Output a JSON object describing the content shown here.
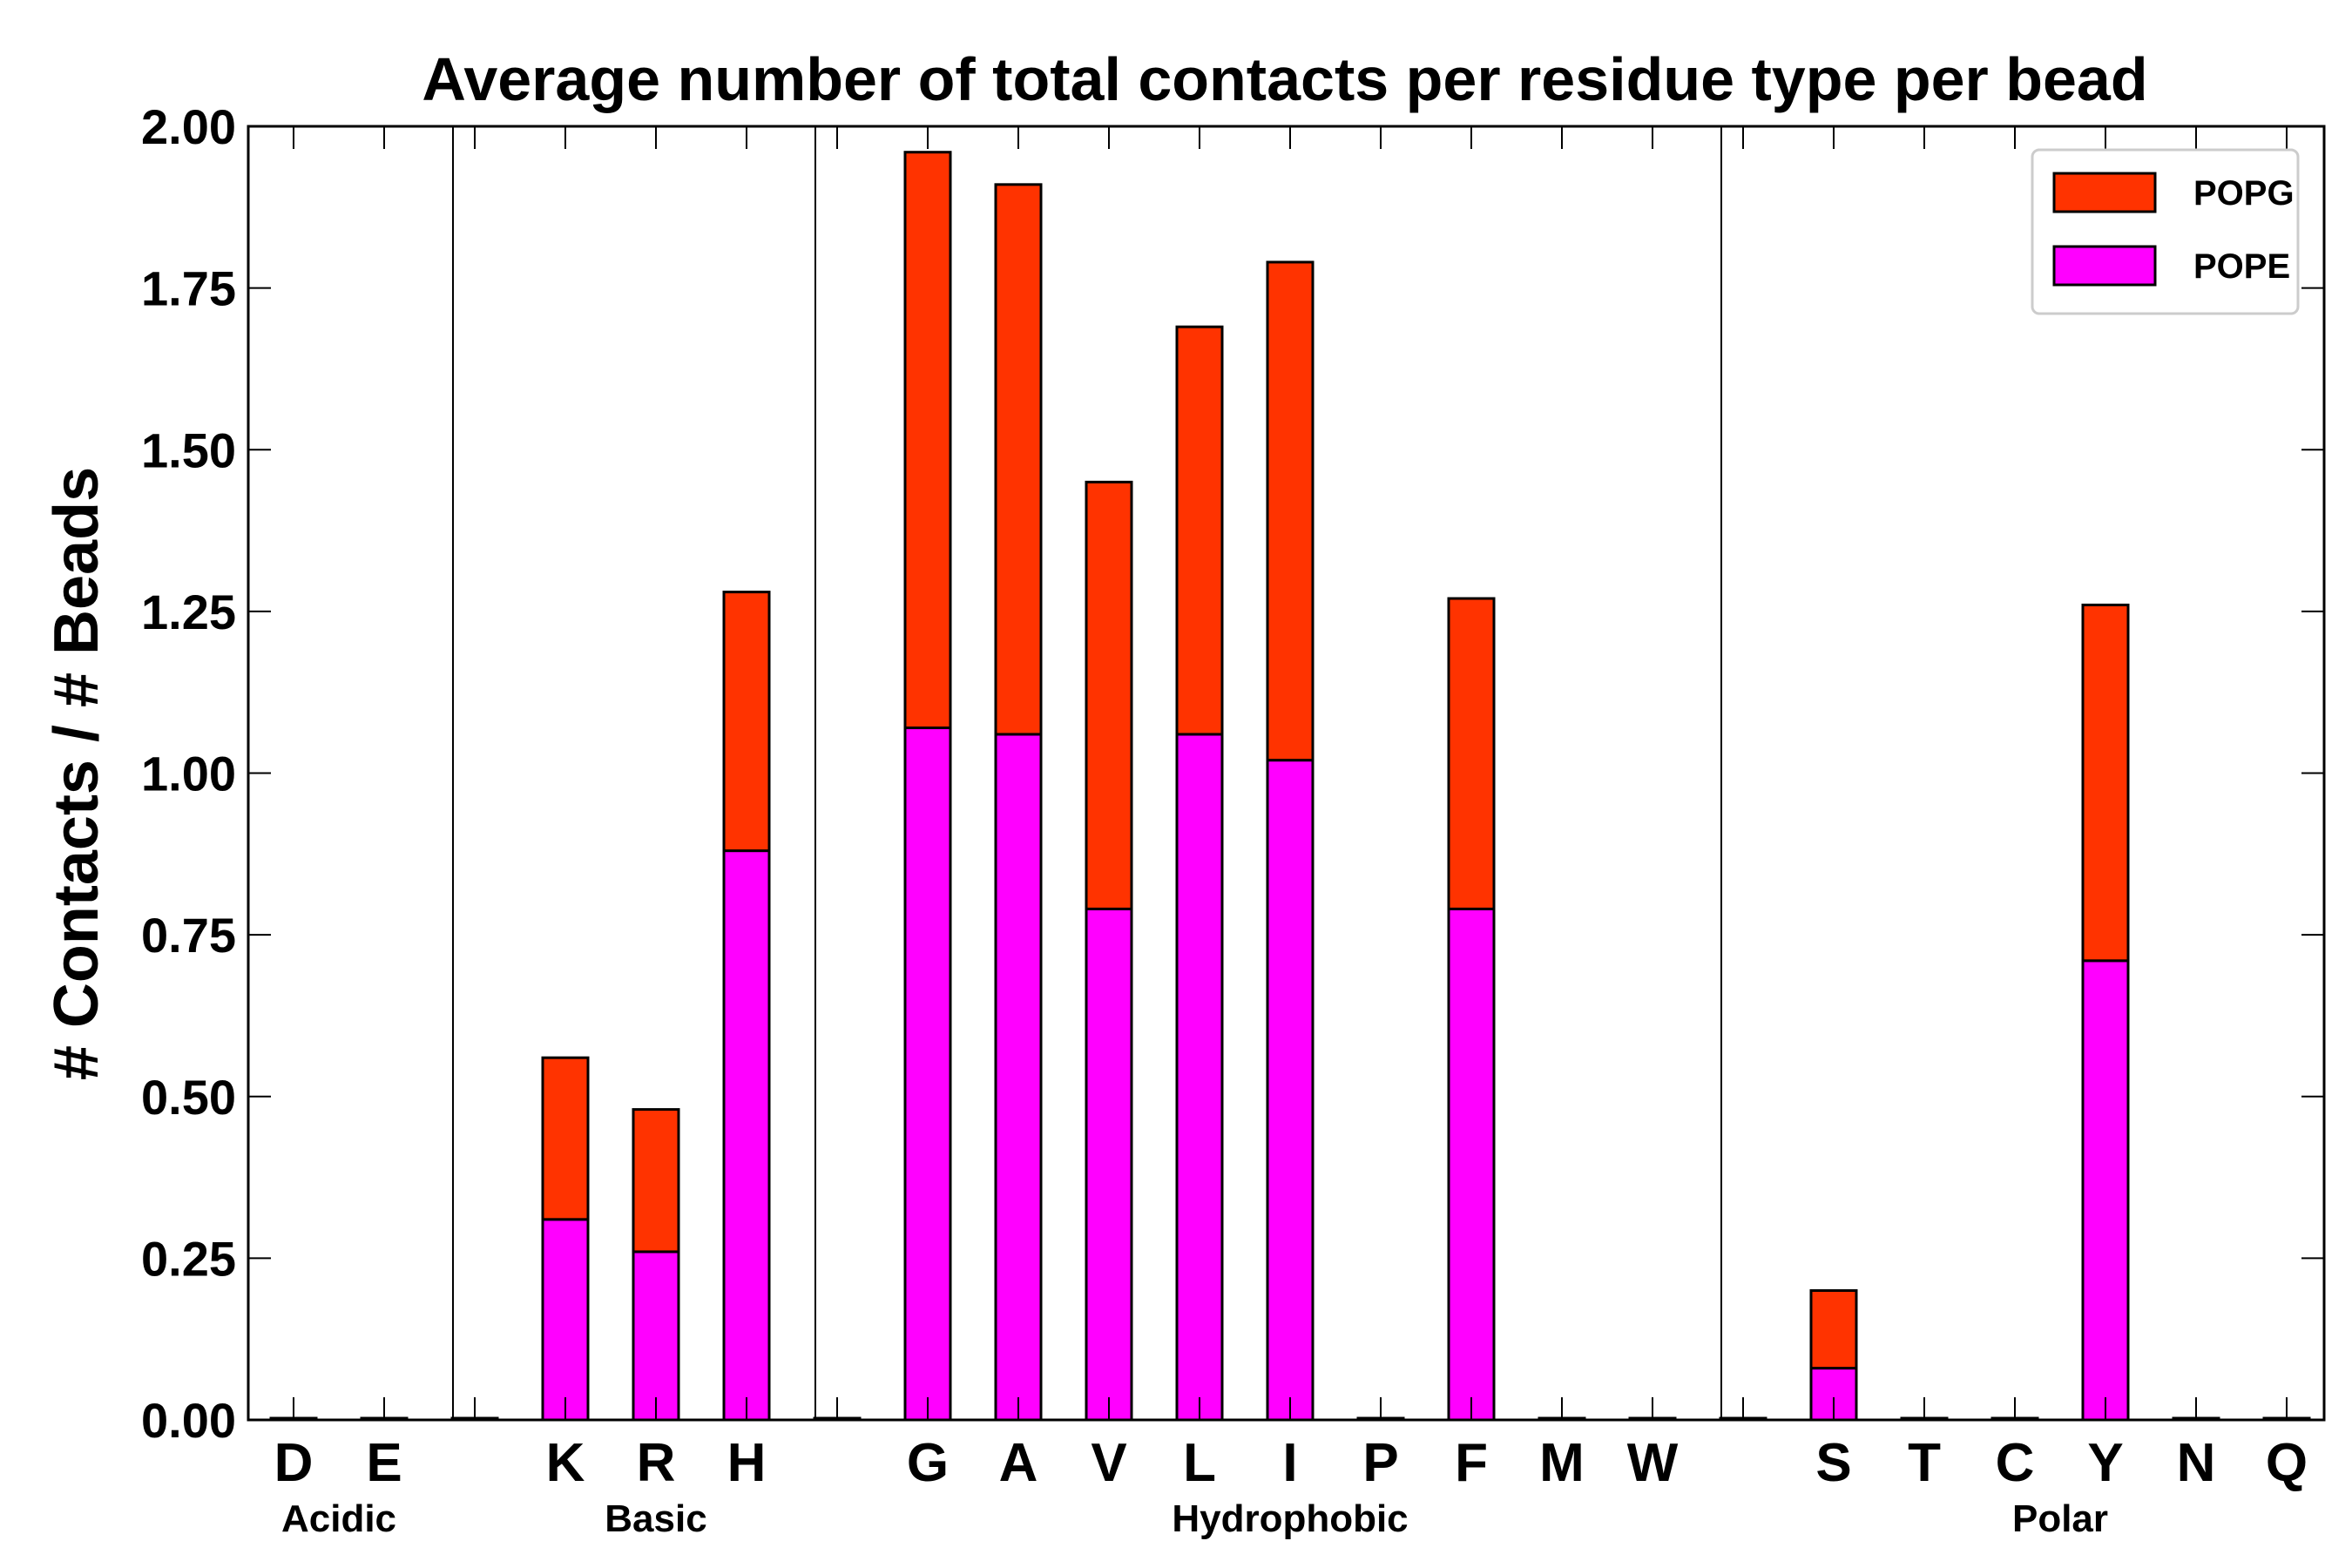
{
  "chart_data": {
    "type": "bar",
    "stacked": true,
    "title": "Average number of total contacts per residue type per bead",
    "xlabel": "",
    "ylabel": "# Contacts / # Beads",
    "ylim": [
      0,
      2.0
    ],
    "yticks": [
      "0.00",
      "0.25",
      "0.50",
      "0.75",
      "1.00",
      "1.25",
      "1.50",
      "1.75",
      "2.00"
    ],
    "categories": [
      "D",
      "E",
      "",
      "K",
      "R",
      "H",
      "",
      "G",
      "A",
      "V",
      "L",
      "I",
      "P",
      "F",
      "M",
      "W",
      "",
      "S",
      "T",
      "C",
      "Y",
      "N",
      "Q"
    ],
    "series": [
      {
        "name": "POPE",
        "color": "#ff00ff",
        "values": [
          0,
          0,
          0,
          0.31,
          0.26,
          0.88,
          0,
          1.07,
          1.06,
          0.79,
          1.06,
          1.02,
          0,
          0.79,
          0,
          0,
          0,
          0.08,
          0,
          0,
          0.71,
          0,
          0
        ]
      },
      {
        "name": "POPG",
        "color": "#ff3300",
        "values": [
          0,
          0,
          0,
          0.25,
          0.22,
          0.4,
          0,
          0.89,
          0.85,
          0.66,
          0.63,
          0.77,
          0,
          0.48,
          0,
          0,
          0,
          0.12,
          0,
          0,
          0.55,
          0,
          0
        ]
      }
    ],
    "groups": [
      {
        "label": "Acidic",
        "first": 0,
        "last": 1
      },
      {
        "label": "Basic",
        "first": 3,
        "last": 5
      },
      {
        "label": "Hydrophobic",
        "first": 7,
        "last": 15
      },
      {
        "label": "Polar",
        "first": 17,
        "last": 22
      }
    ],
    "dividers_after": [
      2,
      6,
      16
    ],
    "legend": [
      {
        "label": "POPG",
        "color": "#ff3300"
      },
      {
        "label": "POPE",
        "color": "#ff00ff"
      }
    ],
    "legend_position": "top-right",
    "grid": false
  }
}
